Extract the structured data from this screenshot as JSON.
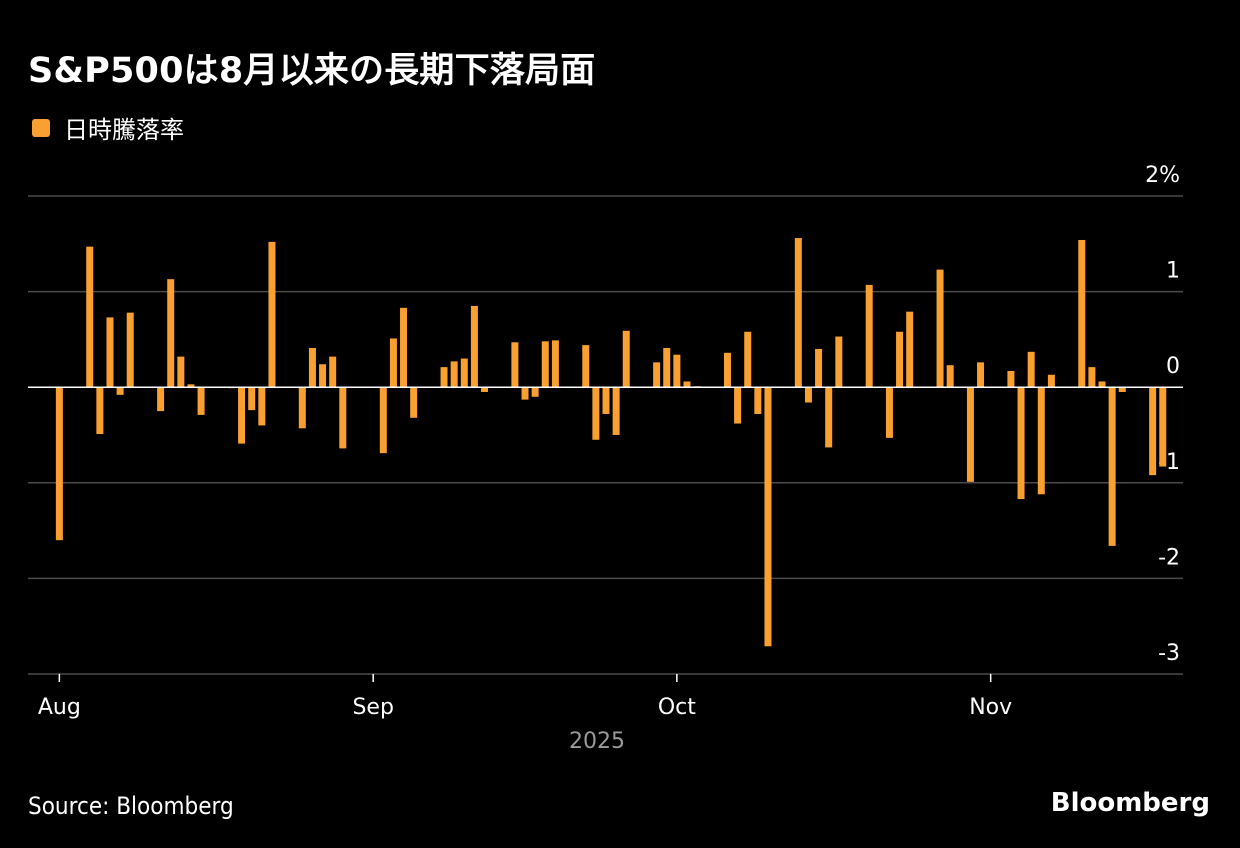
{
  "title": "S&P500は8月以来の長期下落局面",
  "legend": {
    "label": "日時騰落率",
    "color": "#f9a030"
  },
  "footer": {
    "source": "Source: Bloomberg",
    "brand": "Bloomberg"
  },
  "chart_data": {
    "type": "bar",
    "title": "S&P500は8月以来の長期下落局面",
    "xlabel": "2025",
    "ylabel": "",
    "y_unit": "%",
    "ylim": [
      -3,
      2
    ],
    "yticks": [
      {
        "value": 2,
        "label": "2%"
      },
      {
        "value": 1,
        "label": "1"
      },
      {
        "value": 0,
        "label": "0"
      },
      {
        "value": -1,
        "label": "-1"
      },
      {
        "value": -2,
        "label": "-2"
      },
      {
        "value": -3,
        "label": "-3"
      }
    ],
    "xticks": [
      {
        "date": "2025-08-01",
        "label": "Aug"
      },
      {
        "date": "2025-09-01",
        "label": "Sep"
      },
      {
        "date": "2025-10-01",
        "label": "Oct"
      },
      {
        "date": "2025-11-01",
        "label": "Nov"
      }
    ],
    "x_domain": [
      "2025-07-29",
      "2025-11-20"
    ],
    "grid": true,
    "legend_position": "top-left",
    "series": [
      {
        "name": "日時騰落率",
        "color": "#f9a030",
        "points": [
          [
            "2025-08-01",
            -1.6
          ],
          [
            "2025-08-04",
            1.47
          ],
          [
            "2025-08-05",
            -0.49
          ],
          [
            "2025-08-06",
            0.73
          ],
          [
            "2025-08-07",
            -0.08
          ],
          [
            "2025-08-08",
            0.78
          ],
          [
            "2025-08-11",
            -0.25
          ],
          [
            "2025-08-12",
            1.13
          ],
          [
            "2025-08-13",
            0.32
          ],
          [
            "2025-08-14",
            0.03
          ],
          [
            "2025-08-15",
            -0.29
          ],
          [
            "2025-08-18",
            -0.01
          ],
          [
            "2025-08-19",
            -0.59
          ],
          [
            "2025-08-20",
            -0.24
          ],
          [
            "2025-08-21",
            -0.4
          ],
          [
            "2025-08-22",
            1.52
          ],
          [
            "2025-08-25",
            -0.43
          ],
          [
            "2025-08-26",
            0.41
          ],
          [
            "2025-08-27",
            0.24
          ],
          [
            "2025-08-28",
            0.32
          ],
          [
            "2025-08-29",
            -0.64
          ],
          [
            "2025-09-02",
            -0.69
          ],
          [
            "2025-09-03",
            0.51
          ],
          [
            "2025-09-04",
            0.83
          ],
          [
            "2025-09-05",
            -0.32
          ],
          [
            "2025-09-08",
            0.21
          ],
          [
            "2025-09-09",
            0.27
          ],
          [
            "2025-09-10",
            0.3
          ],
          [
            "2025-09-11",
            0.85
          ],
          [
            "2025-09-12",
            -0.05
          ],
          [
            "2025-09-15",
            0.47
          ],
          [
            "2025-09-16",
            -0.13
          ],
          [
            "2025-09-17",
            -0.1
          ],
          [
            "2025-09-18",
            0.48
          ],
          [
            "2025-09-19",
            0.49
          ],
          [
            "2025-09-22",
            0.44
          ],
          [
            "2025-09-23",
            -0.55
          ],
          [
            "2025-09-24",
            -0.28
          ],
          [
            "2025-09-25",
            -0.5
          ],
          [
            "2025-09-26",
            0.59
          ],
          [
            "2025-09-29",
            0.26
          ],
          [
            "2025-09-30",
            0.41
          ],
          [
            "2025-10-01",
            0.34
          ],
          [
            "2025-10-02",
            0.06
          ],
          [
            "2025-10-03",
            0.01
          ],
          [
            "2025-10-06",
            0.36
          ],
          [
            "2025-10-07",
            -0.38
          ],
          [
            "2025-10-08",
            0.58
          ],
          [
            "2025-10-09",
            -0.28
          ],
          [
            "2025-10-10",
            -2.71
          ],
          [
            "2025-10-13",
            1.56
          ],
          [
            "2025-10-14",
            -0.16
          ],
          [
            "2025-10-15",
            0.4
          ],
          [
            "2025-10-16",
            -0.63
          ],
          [
            "2025-10-17",
            0.53
          ],
          [
            "2025-10-20",
            1.07
          ],
          [
            "2025-10-21",
            0.0
          ],
          [
            "2025-10-22",
            -0.53
          ],
          [
            "2025-10-23",
            0.58
          ],
          [
            "2025-10-24",
            0.79
          ],
          [
            "2025-10-27",
            1.23
          ],
          [
            "2025-10-28",
            0.23
          ],
          [
            "2025-10-29",
            0.0
          ],
          [
            "2025-10-30",
            -0.99
          ],
          [
            "2025-10-31",
            0.26
          ],
          [
            "2025-11-03",
            0.17
          ],
          [
            "2025-11-04",
            -1.17
          ],
          [
            "2025-11-05",
            0.37
          ],
          [
            "2025-11-06",
            -1.12
          ],
          [
            "2025-11-07",
            0.13
          ],
          [
            "2025-11-10",
            1.54
          ],
          [
            "2025-11-11",
            0.21
          ],
          [
            "2025-11-12",
            0.06
          ],
          [
            "2025-11-13",
            -1.66
          ],
          [
            "2025-11-14",
            -0.05
          ],
          [
            "2025-11-17",
            -0.92
          ],
          [
            "2025-11-18",
            -0.83
          ]
        ]
      }
    ]
  }
}
